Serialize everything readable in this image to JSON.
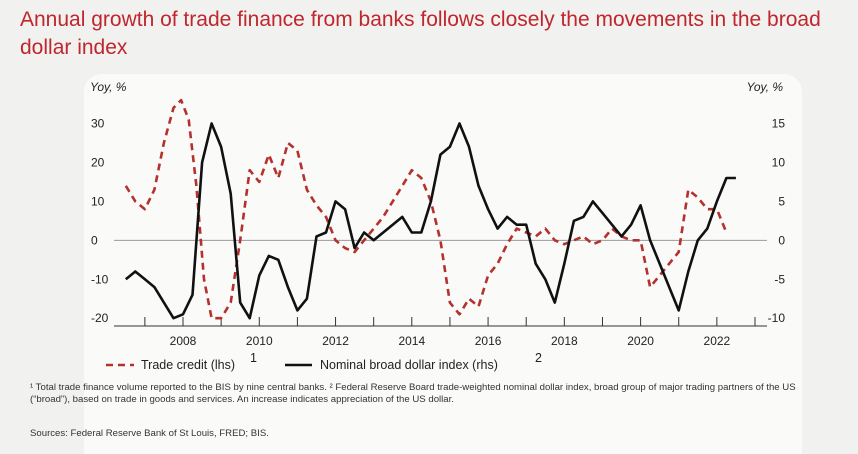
{
  "title": "Annual growth of trade finance from banks follows closely the movements in the broad dollar index",
  "colors": {
    "title": "#c0262d",
    "trade_credit": "#b5312e",
    "dollar_index": "#111111",
    "zero_line": "#9a9a9a"
  },
  "chart_data": {
    "type": "line",
    "left_axis": {
      "unit_label": "Yoy, %",
      "ticks": [
        "30",
        "20",
        "10",
        "0",
        "-10",
        "-20"
      ],
      "range": [
        -22,
        35
      ]
    },
    "right_axis": {
      "unit_label": "Yoy, %",
      "ticks": [
        "15",
        "10",
        "5",
        "0",
        "-5",
        "-10"
      ],
      "range": [
        -11,
        17.5
      ]
    },
    "x_axis": {
      "ticks": [
        "2008",
        "2010",
        "2012",
        "2014",
        "2016",
        "2018",
        "2020",
        "2022"
      ],
      "range": [
        2006.4,
        2023.0
      ]
    },
    "series": [
      {
        "name": "Trade credit (lhs)",
        "superscript": "1",
        "axis": "left",
        "style": "dashed",
        "points": [
          [
            2006.5,
            14
          ],
          [
            2006.75,
            10
          ],
          [
            2007.0,
            8
          ],
          [
            2007.25,
            13
          ],
          [
            2007.5,
            25
          ],
          [
            2007.75,
            34
          ],
          [
            2007.95,
            36
          ],
          [
            2008.15,
            31
          ],
          [
            2008.35,
            14
          ],
          [
            2008.55,
            -10
          ],
          [
            2008.75,
            -20
          ],
          [
            2009.0,
            -20
          ],
          [
            2009.25,
            -16
          ],
          [
            2009.5,
            0
          ],
          [
            2009.75,
            18
          ],
          [
            2010.0,
            15
          ],
          [
            2010.25,
            22
          ],
          [
            2010.5,
            16
          ],
          [
            2010.75,
            25
          ],
          [
            2011.0,
            23
          ],
          [
            2011.25,
            13
          ],
          [
            2011.5,
            9
          ],
          [
            2011.75,
            6
          ],
          [
            2012.0,
            0
          ],
          [
            2012.25,
            -2
          ],
          [
            2012.5,
            -3
          ],
          [
            2012.75,
            0
          ],
          [
            2013.0,
            3
          ],
          [
            2013.25,
            6
          ],
          [
            2013.5,
            10
          ],
          [
            2013.75,
            14
          ],
          [
            2014.0,
            18
          ],
          [
            2014.25,
            16
          ],
          [
            2014.5,
            10
          ],
          [
            2014.75,
            0
          ],
          [
            2015.0,
            -16
          ],
          [
            2015.25,
            -19
          ],
          [
            2015.5,
            -15
          ],
          [
            2015.75,
            -17
          ],
          [
            2016.0,
            -9
          ],
          [
            2016.25,
            -6
          ],
          [
            2016.5,
            -1
          ],
          [
            2016.75,
            3
          ],
          [
            2017.0,
            2
          ],
          [
            2017.25,
            1
          ],
          [
            2017.5,
            3
          ],
          [
            2017.75,
            0
          ],
          [
            2018.0,
            -1
          ],
          [
            2018.25,
            0
          ],
          [
            2018.5,
            1
          ],
          [
            2018.75,
            -1
          ],
          [
            2019.0,
            0
          ],
          [
            2019.25,
            3
          ],
          [
            2019.5,
            1
          ],
          [
            2019.75,
            0
          ],
          [
            2020.0,
            0
          ],
          [
            2020.25,
            -12
          ],
          [
            2020.5,
            -9
          ],
          [
            2020.75,
            -6
          ],
          [
            2021.0,
            -3
          ],
          [
            2021.25,
            13
          ],
          [
            2021.5,
            11
          ],
          [
            2021.75,
            8
          ],
          [
            2022.0,
            8
          ],
          [
            2022.25,
            2
          ]
        ]
      },
      {
        "name": "Nominal broad dollar index (rhs)",
        "superscript": "2",
        "axis": "right",
        "style": "solid",
        "points": [
          [
            2006.5,
            -5
          ],
          [
            2006.75,
            -4
          ],
          [
            2007.0,
            -5
          ],
          [
            2007.25,
            -6
          ],
          [
            2007.5,
            -8
          ],
          [
            2007.75,
            -10
          ],
          [
            2008.0,
            -9.5
          ],
          [
            2008.25,
            -7
          ],
          [
            2008.5,
            10
          ],
          [
            2008.75,
            15
          ],
          [
            2009.0,
            12
          ],
          [
            2009.25,
            6
          ],
          [
            2009.5,
            -8
          ],
          [
            2009.75,
            -10
          ],
          [
            2010.0,
            -4.5
          ],
          [
            2010.25,
            -2
          ],
          [
            2010.5,
            -2.5
          ],
          [
            2010.75,
            -6
          ],
          [
            2011.0,
            -9
          ],
          [
            2011.25,
            -7.5
          ],
          [
            2011.5,
            0.5
          ],
          [
            2011.75,
            1
          ],
          [
            2012.0,
            5
          ],
          [
            2012.25,
            4
          ],
          [
            2012.5,
            -1
          ],
          [
            2012.75,
            1
          ],
          [
            2013.0,
            0
          ],
          [
            2013.25,
            1
          ],
          [
            2013.5,
            2
          ],
          [
            2013.75,
            3
          ],
          [
            2014.0,
            1
          ],
          [
            2014.25,
            1
          ],
          [
            2014.5,
            5
          ],
          [
            2014.75,
            11
          ],
          [
            2015.0,
            12
          ],
          [
            2015.25,
            15
          ],
          [
            2015.5,
            12
          ],
          [
            2015.75,
            7
          ],
          [
            2016.0,
            4
          ],
          [
            2016.25,
            1.5
          ],
          [
            2016.5,
            3
          ],
          [
            2016.75,
            2
          ],
          [
            2017.0,
            2
          ],
          [
            2017.25,
            -3
          ],
          [
            2017.5,
            -5
          ],
          [
            2017.75,
            -8
          ],
          [
            2018.0,
            -3
          ],
          [
            2018.25,
            2.5
          ],
          [
            2018.5,
            3
          ],
          [
            2018.75,
            5
          ],
          [
            2019.0,
            3.5
          ],
          [
            2019.25,
            2
          ],
          [
            2019.5,
            0.5
          ],
          [
            2019.75,
            2
          ],
          [
            2020.0,
            4.5
          ],
          [
            2020.25,
            0
          ],
          [
            2020.5,
            -3
          ],
          [
            2020.75,
            -6
          ],
          [
            2021.0,
            -9
          ],
          [
            2021.25,
            -4
          ],
          [
            2021.5,
            0
          ],
          [
            2021.75,
            1.5
          ],
          [
            2022.0,
            5
          ],
          [
            2022.25,
            8
          ],
          [
            2022.5,
            8
          ]
        ]
      }
    ]
  },
  "footnote": "¹ Total trade finance volume reported to the BIS by nine central banks.  ² Federal Reserve Board trade-weighted nominal dollar index, broad group of major trading partners of the US (“broad”), based on trade in goods and services. An increase indicates appreciation of the US dollar.",
  "sources": "Sources: Federal Reserve Bank of St Louis, FRED; BIS."
}
